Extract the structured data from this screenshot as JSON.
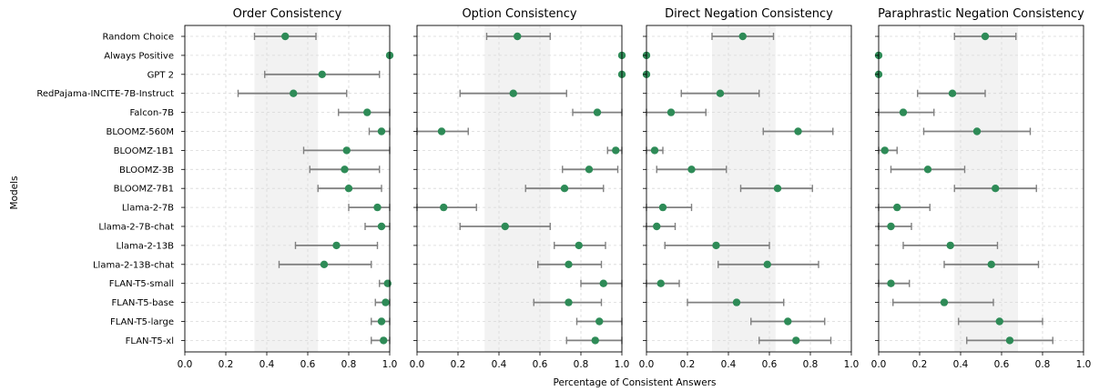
{
  "chart_data": {
    "type": "scatter",
    "ylabel": "Models",
    "xlabel": "Percentage of Consistent Answers",
    "xlim": [
      0,
      1
    ],
    "xticks": [
      "0.0",
      "0.2",
      "0.4",
      "0.6",
      "0.8",
      "1.0"
    ],
    "grid": true,
    "colors": {
      "point": "#2e8b57",
      "errorbar": "#808080",
      "band": "#f2f2f2"
    },
    "categories": [
      "Random Choice",
      "Always Positive",
      "GPT 2",
      "RedPajama-INCITE-7B-Instruct",
      "Falcon-7B",
      "BLOOMZ-560M",
      "BLOOMZ-1B1",
      "BLOOMZ-3B",
      "BLOOMZ-7B1",
      "Llama-2-7B",
      "Llama-2-7B-chat",
      "Llama-2-13B",
      "Llama-2-13B-chat",
      "FLAN-T5-small",
      "FLAN-T5-base",
      "FLAN-T5-large",
      "FLAN-T5-xl"
    ],
    "panels": [
      {
        "title": "Order Consistency",
        "band": [
          0.34,
          0.65
        ],
        "points": [
          {
            "value": 0.49,
            "low": 0.34,
            "high": 0.64
          },
          {
            "value": 1.0,
            "low": 1.0,
            "high": 1.0
          },
          {
            "value": 0.67,
            "low": 0.39,
            "high": 0.95
          },
          {
            "value": 0.53,
            "low": 0.26,
            "high": 0.79
          },
          {
            "value": 0.89,
            "low": 0.75,
            "high": 1.0
          },
          {
            "value": 0.96,
            "low": 0.9,
            "high": 1.0
          },
          {
            "value": 0.79,
            "low": 0.58,
            "high": 1.0
          },
          {
            "value": 0.78,
            "low": 0.61,
            "high": 0.95
          },
          {
            "value": 0.8,
            "low": 0.65,
            "high": 0.96
          },
          {
            "value": 0.94,
            "low": 0.8,
            "high": 1.0
          },
          {
            "value": 0.96,
            "low": 0.88,
            "high": 1.0
          },
          {
            "value": 0.74,
            "low": 0.54,
            "high": 0.94
          },
          {
            "value": 0.68,
            "low": 0.46,
            "high": 0.91
          },
          {
            "value": 0.99,
            "low": 0.95,
            "high": 1.0
          },
          {
            "value": 0.98,
            "low": 0.93,
            "high": 1.0
          },
          {
            "value": 0.96,
            "low": 0.91,
            "high": 1.0
          },
          {
            "value": 0.97,
            "low": 0.91,
            "high": 1.0
          }
        ]
      },
      {
        "title": "Option Consistency",
        "band": [
          0.33,
          0.65
        ],
        "points": [
          {
            "value": 0.49,
            "low": 0.34,
            "high": 0.65
          },
          {
            "value": 1.0,
            "low": 1.0,
            "high": 1.0
          },
          {
            "value": 1.0,
            "low": 1.0,
            "high": 1.0
          },
          {
            "value": 0.47,
            "low": 0.21,
            "high": 0.73
          },
          {
            "value": 0.88,
            "low": 0.76,
            "high": 1.0
          },
          {
            "value": 0.12,
            "low": 0.0,
            "high": 0.25
          },
          {
            "value": 0.97,
            "low": 0.93,
            "high": 1.0
          },
          {
            "value": 0.84,
            "low": 0.71,
            "high": 0.98
          },
          {
            "value": 0.72,
            "low": 0.53,
            "high": 0.91
          },
          {
            "value": 0.13,
            "low": 0.0,
            "high": 0.29
          },
          {
            "value": 0.43,
            "low": 0.21,
            "high": 0.65
          },
          {
            "value": 0.79,
            "low": 0.67,
            "high": 0.92
          },
          {
            "value": 0.74,
            "low": 0.59,
            "high": 0.9
          },
          {
            "value": 0.91,
            "low": 0.8,
            "high": 1.0
          },
          {
            "value": 0.74,
            "low": 0.57,
            "high": 0.9
          },
          {
            "value": 0.89,
            "low": 0.78,
            "high": 1.0
          },
          {
            "value": 0.87,
            "low": 0.73,
            "high": 1.0
          }
        ]
      },
      {
        "title": "Direct Negation Consistency",
        "band": [
          0.32,
          0.63
        ],
        "points": [
          {
            "value": 0.47,
            "low": 0.32,
            "high": 0.62
          },
          {
            "value": 0.0,
            "low": 0.0,
            "high": 0.0
          },
          {
            "value": 0.0,
            "low": 0.0,
            "high": 0.0
          },
          {
            "value": 0.36,
            "low": 0.17,
            "high": 0.55
          },
          {
            "value": 0.12,
            "low": 0.0,
            "high": 0.29
          },
          {
            "value": 0.74,
            "low": 0.57,
            "high": 0.91
          },
          {
            "value": 0.04,
            "low": 0.0,
            "high": 0.08
          },
          {
            "value": 0.22,
            "low": 0.05,
            "high": 0.39
          },
          {
            "value": 0.64,
            "low": 0.46,
            "high": 0.81
          },
          {
            "value": 0.08,
            "low": 0.0,
            "high": 0.22
          },
          {
            "value": 0.05,
            "low": 0.0,
            "high": 0.14
          },
          {
            "value": 0.34,
            "low": 0.09,
            "high": 0.6
          },
          {
            "value": 0.59,
            "low": 0.35,
            "high": 0.84
          },
          {
            "value": 0.07,
            "low": 0.0,
            "high": 0.16
          },
          {
            "value": 0.44,
            "low": 0.2,
            "high": 0.67
          },
          {
            "value": 0.69,
            "low": 0.51,
            "high": 0.87
          },
          {
            "value": 0.73,
            "low": 0.55,
            "high": 0.9
          }
        ]
      },
      {
        "title": "Paraphrastic Negation Consistency",
        "band": [
          0.37,
          0.68
        ],
        "points": [
          {
            "value": 0.52,
            "low": 0.37,
            "high": 0.67
          },
          {
            "value": 0.0,
            "low": 0.0,
            "high": 0.0
          },
          {
            "value": 0.0,
            "low": 0.0,
            "high": 0.0
          },
          {
            "value": 0.36,
            "low": 0.19,
            "high": 0.52
          },
          {
            "value": 0.12,
            "low": 0.0,
            "high": 0.27
          },
          {
            "value": 0.48,
            "low": 0.22,
            "high": 0.74
          },
          {
            "value": 0.03,
            "low": 0.0,
            "high": 0.09
          },
          {
            "value": 0.24,
            "low": 0.06,
            "high": 0.42
          },
          {
            "value": 0.57,
            "low": 0.37,
            "high": 0.77
          },
          {
            "value": 0.09,
            "low": 0.0,
            "high": 0.25
          },
          {
            "value": 0.06,
            "low": 0.0,
            "high": 0.16
          },
          {
            "value": 0.35,
            "low": 0.12,
            "high": 0.58
          },
          {
            "value": 0.55,
            "low": 0.32,
            "high": 0.78
          },
          {
            "value": 0.06,
            "low": 0.0,
            "high": 0.15
          },
          {
            "value": 0.32,
            "low": 0.07,
            "high": 0.56
          },
          {
            "value": 0.59,
            "low": 0.39,
            "high": 0.8
          },
          {
            "value": 0.64,
            "low": 0.43,
            "high": 0.85
          }
        ]
      }
    ]
  }
}
